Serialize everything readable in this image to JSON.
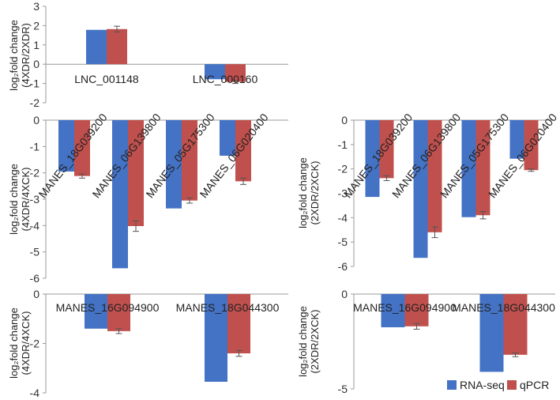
{
  "colors": {
    "rna_seq": "#4472C4",
    "qpcr": "#C0504D",
    "error": "#555555"
  },
  "legend": {
    "items": [
      "RNA-seq",
      "qPCR"
    ],
    "placement": "bottom-right"
  },
  "chart_data": [
    {
      "type": "bar",
      "id": "A",
      "ylabel_line1": "log₂fold change",
      "ylabel_line2": "(4XDR/2XDR)",
      "categories": [
        "LNC_001148",
        "LNC_000160"
      ],
      "series": [
        {
          "name": "RNA-seq",
          "values": [
            1.78,
            -0.78
          ]
        },
        {
          "name": "qPCR",
          "values": [
            1.82,
            -0.92
          ],
          "errors": [
            0.15,
            0.08
          ]
        }
      ],
      "ylim": [
        -2,
        3
      ],
      "yticks": [
        3,
        2,
        1,
        0,
        -1,
        -2
      ]
    },
    {
      "type": "bar",
      "id": "B",
      "ylabel_line1": "log₂fold change",
      "ylabel_line2": "(4XDR/4XCK)",
      "categories": [
        "MANES_18G039200",
        "MANES_06G139800",
        "MANES_05G175300",
        "MANES_06G020400"
      ],
      "series": [
        {
          "name": "RNA-seq",
          "values": [
            -1.95,
            -5.62,
            -3.35,
            -1.35
          ]
        },
        {
          "name": "qPCR",
          "values": [
            -2.12,
            -4.02,
            -3.05,
            -2.32
          ],
          "errors": [
            0.08,
            0.2,
            0.1,
            0.12
          ]
        }
      ],
      "ylim": [
        -6,
        0
      ],
      "yticks": [
        0,
        -1,
        -2,
        -3,
        -4,
        -5,
        -6
      ]
    },
    {
      "type": "bar",
      "id": "C",
      "ylabel_line1": "log₂fold change",
      "ylabel_line2": "(2XDR/2XCK)",
      "categories": [
        "MANES_18G039200",
        "MANES_06G139800",
        "MANES_05G175300",
        "MANES_06G020400"
      ],
      "series": [
        {
          "name": "RNA-seq",
          "values": [
            -3.15,
            -5.65,
            -3.98,
            -1.58
          ]
        },
        {
          "name": "qPCR",
          "values": [
            -2.38,
            -4.6,
            -3.9,
            -2.05
          ],
          "errors": [
            0.1,
            0.22,
            0.15,
            0.05
          ]
        }
      ],
      "ylim": [
        -6,
        0
      ],
      "yticks": [
        0,
        -1,
        -2,
        -3,
        -4,
        -5,
        -6
      ]
    },
    {
      "type": "bar",
      "id": "D",
      "ylabel_line1": "log₂fold change",
      "ylabel_line2": "(4XDR/4XCK)",
      "categories": [
        "MANES_16G094900",
        "MANES_18G044300"
      ],
      "series": [
        {
          "name": "RNA-seq",
          "values": [
            -1.4,
            -3.55
          ]
        },
        {
          "name": "qPCR",
          "values": [
            -1.5,
            -2.4
          ],
          "errors": [
            0.1,
            0.12
          ]
        }
      ],
      "ylim": [
        -4,
        0
      ],
      "yticks": [
        0,
        -2,
        -4
      ]
    },
    {
      "type": "bar",
      "id": "E",
      "ylabel_line1": "log₂fold change",
      "ylabel_line2": "(2XDR/2XCK)",
      "categories": [
        "MANES_16G094900",
        "MANES_18G044300"
      ],
      "series": [
        {
          "name": "RNA-seq",
          "values": [
            -1.75,
            -4.1
          ]
        },
        {
          "name": "qPCR",
          "values": [
            -1.7,
            -3.2
          ],
          "errors": [
            0.15,
            0.1
          ]
        }
      ],
      "ylim": [
        -5,
        0
      ],
      "yticks": [
        0,
        -5
      ]
    }
  ]
}
